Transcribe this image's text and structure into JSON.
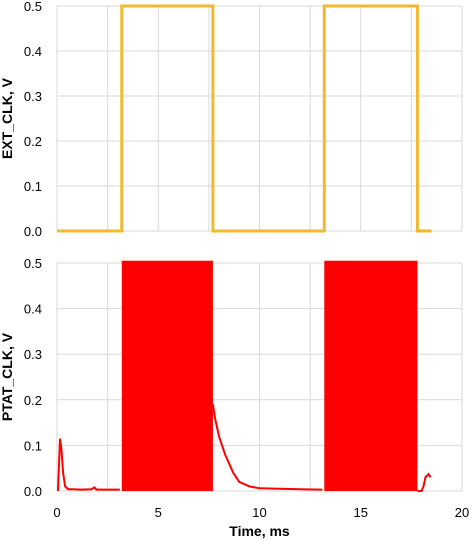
{
  "chart_data": [
    {
      "type": "line",
      "ylabel": "EXT_CLK, V",
      "xlabel": "",
      "xlim": [
        0,
        20
      ],
      "ylim": [
        0,
        0.5
      ],
      "yticks": [
        "0.0",
        "0.1",
        "0.2",
        "0.3",
        "0.4",
        "0.5"
      ],
      "grid": true,
      "color": "#F2B92E",
      "series": [
        {
          "x": [
            0,
            3.2,
            3.2,
            7.7,
            7.7,
            13.2,
            13.2,
            17.8,
            17.8,
            18.5
          ],
          "y": [
            0,
            0,
            0.5,
            0.5,
            0,
            0,
            0.5,
            0.5,
            0,
            0
          ]
        }
      ]
    },
    {
      "type": "line",
      "ylabel": "PTAT_CLK, V",
      "xlabel": "Time, ms",
      "xlim": [
        0,
        20
      ],
      "ylim": [
        0,
        0.5
      ],
      "xticks": [
        "0",
        "5",
        "10",
        "15",
        "20"
      ],
      "yticks": [
        "0.0",
        "0.1",
        "0.2",
        "0.3",
        "0.4",
        "0.5"
      ],
      "grid": true,
      "color": "#FF0000",
      "series": [
        {
          "x": [
            0.05,
            0.15,
            0.22,
            0.3,
            0.4,
            0.55,
            0.8,
            1.2,
            1.7,
            1.85,
            1.95,
            2.4,
            3.1
          ],
          "y": [
            0.0,
            0.115,
            0.09,
            0.04,
            0.01,
            0.004,
            0.004,
            0.003,
            0.004,
            0.008,
            0.003,
            0.003,
            0.003
          ]
        },
        {
          "x": [
            7.7,
            7.8,
            8.0,
            8.3,
            8.7,
            9.0,
            9.5,
            10.0,
            11.0,
            12.0,
            13.1
          ],
          "y": [
            0.19,
            0.16,
            0.12,
            0.08,
            0.04,
            0.02,
            0.01,
            0.006,
            0.005,
            0.004,
            0.003
          ]
        },
        {
          "x": [
            17.8,
            18.0,
            18.1,
            18.2,
            18.35,
            18.45
          ],
          "y": [
            0.0,
            0.0,
            0.01,
            0.03,
            0.037,
            0.03
          ]
        }
      ],
      "filled_bursts": [
        {
          "x": [
            3.2,
            7.7
          ],
          "y": [
            0,
            0.505
          ]
        },
        {
          "x": [
            13.2,
            17.8
          ],
          "y": [
            0,
            0.505
          ]
        }
      ]
    }
  ]
}
